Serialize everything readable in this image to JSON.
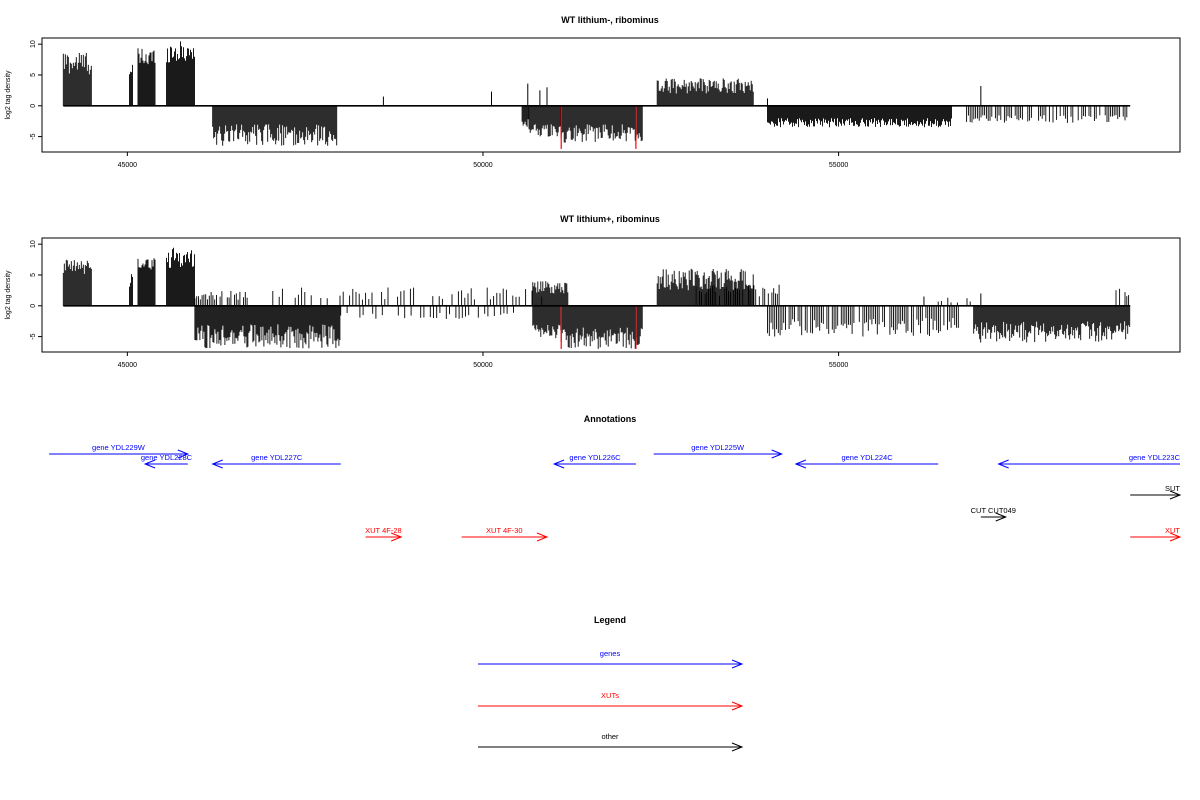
{
  "chart_data": [
    {
      "type": "bar",
      "title": "WT lithium-, ribominus",
      "ylabel": "log2 tag density",
      "xlim": [
        43800,
        59800
      ],
      "ylim": [
        -7.5,
        11
      ],
      "yticks": [
        -5,
        0,
        5,
        10
      ],
      "xticks": [
        45000,
        50000,
        55000
      ],
      "grid": false,
      "profile": [
        [
          44100,
          44500,
          1,
          5,
          9,
          0
        ],
        [
          45030,
          45080,
          1,
          3,
          7,
          0
        ],
        [
          45150,
          45400,
          1,
          6,
          9.5,
          0
        ],
        [
          45550,
          45950,
          1,
          7,
          10.5,
          0
        ],
        [
          46200,
          47950,
          -1,
          3,
          6.5,
          0
        ],
        [
          50550,
          50650,
          -1,
          2,
          4,
          0
        ],
        [
          50650,
          51100,
          -1,
          3,
          5,
          0
        ],
        [
          51100,
          52250,
          -1,
          3,
          6,
          0
        ],
        [
          52450,
          53800,
          1,
          2,
          4.5,
          0
        ],
        [
          54000,
          56600,
          -1,
          2,
          3.5,
          0
        ],
        [
          56800,
          59100,
          -1,
          1.5,
          2.8,
          1
        ]
      ],
      "spikes": [
        [
          48600,
          1.5
        ],
        [
          50120,
          2.3
        ],
        [
          50630,
          3.6
        ],
        [
          50800,
          2.5
        ],
        [
          50900,
          3
        ],
        [
          54000,
          1.2
        ],
        [
          57000,
          3.2
        ]
      ],
      "highlights": [
        {
          "x": 51100,
          "value": -7,
          "color": "#ff0000"
        },
        {
          "x": 52150,
          "value": -7,
          "color": "#ff0000"
        }
      ]
    },
    {
      "type": "bar",
      "title": "WT lithium+, ribominus",
      "ylabel": "log2 tag density",
      "xlim": [
        43800,
        59800
      ],
      "ylim": [
        -7.5,
        11
      ],
      "yticks": [
        -5,
        0,
        5,
        10
      ],
      "xticks": [
        45000,
        50000,
        55000
      ],
      "grid": false,
      "profile": [
        [
          44100,
          44500,
          1,
          5,
          7.5,
          0
        ],
        [
          45030,
          45080,
          1,
          3,
          6,
          0
        ],
        [
          45150,
          45400,
          1,
          5.5,
          8,
          0
        ],
        [
          45550,
          45950,
          1,
          6,
          9.5,
          0
        ],
        [
          45950,
          46700,
          1,
          0.8,
          2.5,
          1
        ],
        [
          45950,
          48000,
          -1,
          3,
          7,
          0
        ],
        [
          47000,
          50900,
          1,
          1,
          3,
          2
        ],
        [
          48000,
          50500,
          -1,
          1,
          2.2,
          2
        ],
        [
          50700,
          51200,
          1,
          2,
          4,
          0
        ],
        [
          50700,
          51100,
          -1,
          3,
          5.5,
          0
        ],
        [
          51100,
          52250,
          -1,
          3.5,
          7,
          0
        ],
        [
          52450,
          53800,
          1,
          2.5,
          6,
          0
        ],
        [
          53000,
          54200,
          1,
          1.5,
          3.5,
          1
        ],
        [
          54000,
          56700,
          -1,
          2,
          5,
          1
        ],
        [
          56400,
          56900,
          1,
          0.5,
          1.5,
          2
        ],
        [
          56900,
          59100,
          -1,
          2.5,
          6,
          0
        ],
        [
          58900,
          59100,
          1,
          1.5,
          3,
          1
        ]
      ],
      "spikes": [
        [
          57000,
          2
        ],
        [
          56200,
          1.5
        ]
      ],
      "highlights": [
        {
          "x": 51100,
          "value": -7,
          "color": "#ff0000"
        },
        {
          "x": 52150,
          "value": -7,
          "color": "#ff0000"
        }
      ]
    }
  ],
  "annotations": {
    "title": "Annotations",
    "features": [
      {
        "label": "gene YDL229W",
        "start": 43900,
        "end": 45850,
        "strand": "+",
        "row": 0,
        "color": "#0000ff"
      },
      {
        "label": "gene YDL228C",
        "start": 45250,
        "end": 45850,
        "strand": "-",
        "row": 1,
        "color": "#0000ff"
      },
      {
        "label": "gene YDL227C",
        "start": 46200,
        "end": 48000,
        "strand": "-",
        "row": 1,
        "color": "#0000ff"
      },
      {
        "label": "gene YDL226C",
        "start": 51000,
        "end": 52150,
        "strand": "-",
        "row": 1,
        "color": "#0000ff"
      },
      {
        "label": "gene YDL225W",
        "start": 52400,
        "end": 54200,
        "strand": "+",
        "row": 0,
        "color": "#0000ff"
      },
      {
        "label": "gene YDL224C",
        "start": 54400,
        "end": 56400,
        "strand": "-",
        "row": 1,
        "color": "#0000ff"
      },
      {
        "label": "gene YDL223C",
        "start": 57250,
        "end": 59800,
        "strand": "-",
        "row": 1,
        "color": "#0000ff"
      },
      {
        "label": "SUT",
        "start": 59100,
        "end": 59800,
        "strand": "+",
        "row": 2,
        "color": "#000000"
      },
      {
        "label": "CUT CUT049",
        "start": 57000,
        "end": 57350,
        "strand": "+",
        "row": 3,
        "color": "#000000"
      },
      {
        "label": "XUT 4F-28",
        "start": 48350,
        "end": 48850,
        "strand": "+",
        "row": 4,
        "color": "#ff0000"
      },
      {
        "label": "XUT 4F-30",
        "start": 49700,
        "end": 50900,
        "strand": "+",
        "row": 4,
        "color": "#ff0000"
      },
      {
        "label": "XUT",
        "start": 59100,
        "end": 59800,
        "strand": "+",
        "row": 4,
        "color": "#ff0000"
      }
    ]
  },
  "legend": {
    "title": "Legend",
    "items": [
      {
        "label": "genes",
        "color": "#0000ff"
      },
      {
        "label": "XUTs",
        "color": "#ff0000"
      },
      {
        "label": "other",
        "color": "#000000"
      }
    ]
  }
}
